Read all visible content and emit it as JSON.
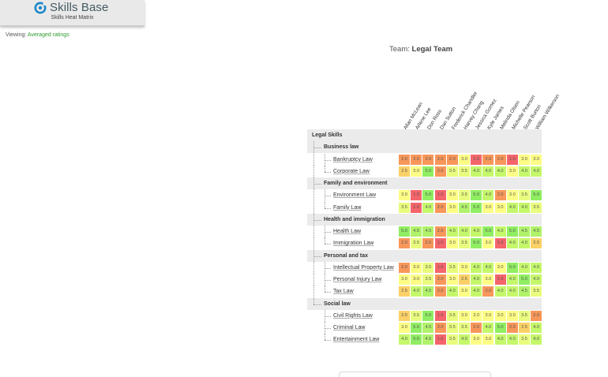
{
  "header": {
    "app_name": "Skills Base",
    "subtitle": "Skills Heat Matrix",
    "brand_color": "#1b88c9"
  },
  "viewing": {
    "label": "Viewing:",
    "value": "Averaged ratings"
  },
  "team": {
    "label": "Team:",
    "name": "Legal Team"
  },
  "people": [
    "Allan McLean",
    "Arlene Lee",
    "Don Ross",
    "Dan Sutton",
    "Frederick Chandler",
    "Harvey Chang",
    "Jessica Gomez",
    "Kyle James",
    "Melinda Olsen",
    "Michelle Pearson",
    "Scott Burton",
    "William Wilkerson"
  ],
  "root": "Legal Skills",
  "categories": [
    {
      "name": "Business law",
      "skills": [
        {
          "name": "Bankruptcy Law",
          "ratings": [
            "2.0",
            "2.0",
            "2.0",
            "2.0",
            "2.0",
            "3.0",
            "1.0",
            "2.0",
            "2.0",
            "1.0",
            "3.0",
            "3.0"
          ]
        },
        {
          "name": "Corporate Law",
          "ratings": [
            "2.5",
            "3.0",
            "5.0",
            "2.0",
            "3.5",
            "3.5",
            "4.0",
            "4.0",
            "4.0",
            "3.0",
            "4.0",
            "4.0"
          ]
        }
      ]
    },
    {
      "name": "Family and environment",
      "skills": [
        {
          "name": "Environment Law",
          "ratings": [
            "3.0",
            "1.0",
            "5.0",
            "1.0",
            "3.0",
            "3.5",
            "5.0",
            "4.0",
            "2.0",
            "3.0",
            "3.5",
            "5.0"
          ]
        },
        {
          "name": "Family Law",
          "ratings": [
            "3.5",
            "1.0",
            "4.0",
            "2.0",
            "3.0",
            "4.5",
            "5.0",
            "3.0",
            "3.0",
            "4.0",
            "4.0",
            "3.5"
          ]
        }
      ]
    },
    {
      "name": "Health and immigration",
      "skills": [
        {
          "name": "Health Law",
          "ratings": [
            "5.0",
            "4.5",
            "4.5",
            "2.0",
            "4.0",
            "4.0",
            "4.0",
            "5.0",
            "4.0",
            "5.0",
            "4.5",
            "4.5"
          ]
        },
        {
          "name": "Immigration Law",
          "ratings": [
            "2.0",
            "3.5",
            "2.0",
            "1.0",
            "3.0",
            "3.5",
            "5.0",
            "3.0",
            "1.0",
            "4.0",
            "4.0",
            "2.5"
          ]
        }
      ]
    },
    {
      "name": "Personal and tax",
      "skills": [
        {
          "name": "Intellectual Property Law",
          "ratings": [
            "2.0",
            "3.0",
            "3.5",
            "1.0",
            "3.5",
            "3.0",
            "4.0",
            "4.0",
            "3.0",
            "5.0",
            "4.0",
            "4.0"
          ]
        },
        {
          "name": "Personal Injury Law",
          "ratings": [
            "3.0",
            "3.0",
            "3.5",
            "2.0",
            "3.0",
            "2.5",
            "4.0",
            "3.0",
            "1.0",
            "4.0",
            "5.0",
            "4.0"
          ]
        },
        {
          "name": "Tax Law",
          "ratings": [
            "2.5",
            "4.0",
            "4.5",
            "2.0",
            "4.0",
            "3.0",
            "4.0",
            "2.0",
            "4.0",
            "4.0",
            "4.5",
            "3.5"
          ]
        }
      ]
    },
    {
      "name": "Social law",
      "skills": [
        {
          "name": "Civil Rights Law",
          "ratings": [
            "2.5",
            "3.5",
            "5.0",
            "1.0",
            "3.5",
            "3.0",
            "3.0",
            "3.0",
            "3.0",
            "3.0",
            "3.5",
            "2.0"
          ]
        },
        {
          "name": "Criminal Law",
          "ratings": [
            "3.0",
            "5.0",
            "4.5",
            "2.0",
            "3.5",
            "3.5",
            "2.0",
            "4.0",
            "5.0",
            "2.0",
            "2.5",
            "4.0"
          ]
        },
        {
          "name": "Entertainment Law",
          "ratings": [
            "4.0",
            "5.0",
            "4.5",
            "1.0",
            "3.5",
            "4.0",
            "3.0",
            "3.0",
            "4.0",
            "4.0",
            "3.5",
            "4.0"
          ]
        }
      ]
    }
  ],
  "rating_colors": {
    "1.0": "#f4656b",
    "2.0": "#f8975a",
    "2.5": "#fbd167",
    "3.0": "#fdfd85",
    "3.5": "#e9fc7e",
    "4.0": "#c5f76b",
    "4.5": "#b0f26a",
    "5.0": "#90ee62"
  }
}
